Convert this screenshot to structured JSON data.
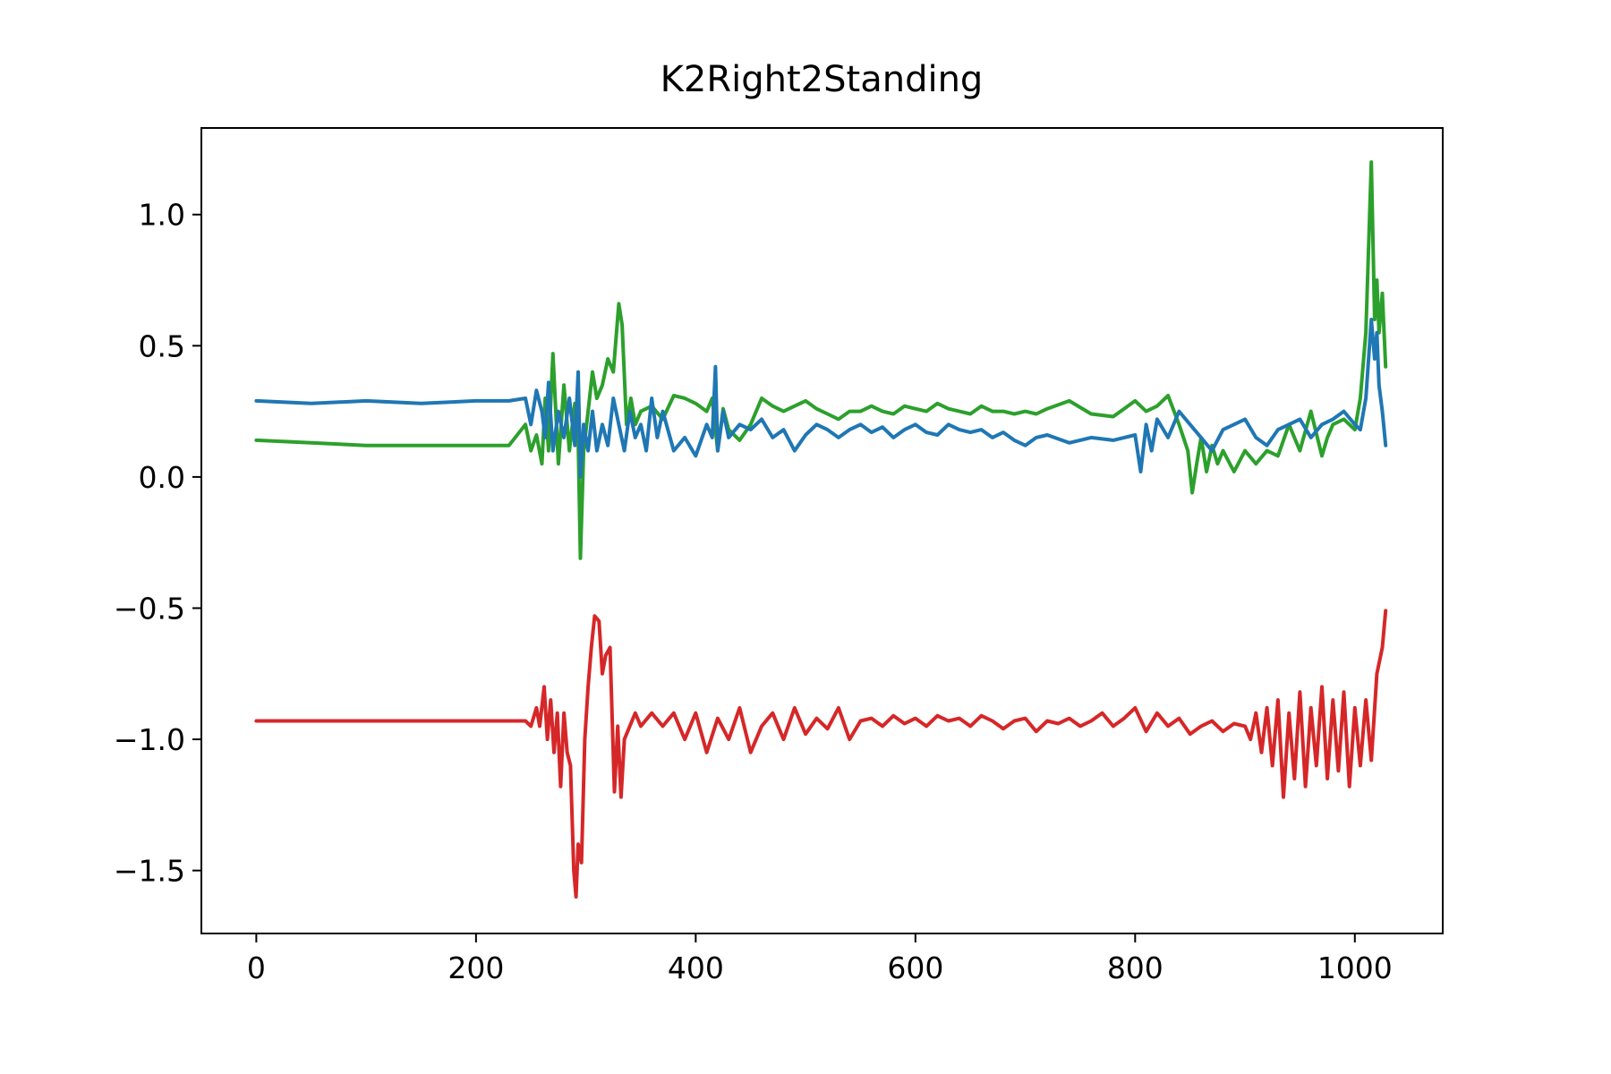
{
  "chart_data": {
    "type": "line",
    "title": "K2Right2Standing",
    "xlabel": "",
    "ylabel": "",
    "xlim": [
      -50,
      1080
    ],
    "ylim": [
      -1.74,
      1.33
    ],
    "x_ticks": [
      0,
      200,
      400,
      600,
      800,
      1000
    ],
    "x_tick_labels": [
      "0",
      "200",
      "400",
      "600",
      "800",
      "1000"
    ],
    "y_ticks": [
      1.0,
      0.5,
      0.0,
      -0.5,
      -1.0,
      -1.5
    ],
    "y_tick_labels": [
      "1.0",
      "0.5",
      "0.0",
      "−0.5",
      "−1.0",
      "−1.5"
    ],
    "grid": false,
    "legend": false,
    "series": [
      {
        "color": "#2ca02c",
        "x": [
          0,
          50,
          100,
          150,
          200,
          230,
          245,
          250,
          255,
          260,
          263,
          266,
          270,
          275,
          280,
          285,
          290,
          293,
          295,
          298,
          302,
          306,
          310,
          315,
          320,
          325,
          330,
          333,
          337,
          341,
          345,
          350,
          360,
          370,
          380,
          390,
          400,
          410,
          415,
          420,
          425,
          430,
          440,
          450,
          460,
          470,
          480,
          490,
          500,
          510,
          520,
          530,
          540,
          550,
          560,
          570,
          580,
          590,
          600,
          610,
          620,
          630,
          640,
          650,
          660,
          670,
          680,
          690,
          700,
          710,
          720,
          740,
          760,
          780,
          800,
          810,
          820,
          830,
          840,
          848,
          852,
          856,
          860,
          865,
          870,
          875,
          880,
          890,
          900,
          910,
          920,
          930,
          940,
          950,
          960,
          970,
          975,
          980,
          990,
          1000,
          1005,
          1010,
          1015,
          1018,
          1020,
          1022,
          1025,
          1028
        ],
        "y": [
          0.14,
          0.13,
          0.12,
          0.12,
          0.12,
          0.12,
          0.2,
          0.1,
          0.16,
          0.05,
          0.3,
          0.1,
          0.47,
          0.05,
          0.35,
          0.1,
          0.28,
          0.15,
          -0.31,
          0.1,
          0.25,
          0.4,
          0.3,
          0.35,
          0.45,
          0.4,
          0.66,
          0.58,
          0.2,
          0.3,
          0.2,
          0.25,
          0.27,
          0.22,
          0.31,
          0.3,
          0.28,
          0.25,
          0.3,
          0.1,
          0.26,
          0.18,
          0.14,
          0.2,
          0.3,
          0.27,
          0.25,
          0.27,
          0.29,
          0.26,
          0.24,
          0.22,
          0.25,
          0.25,
          0.27,
          0.25,
          0.24,
          0.27,
          0.26,
          0.25,
          0.28,
          0.26,
          0.25,
          0.24,
          0.27,
          0.25,
          0.25,
          0.24,
          0.25,
          0.24,
          0.26,
          0.29,
          0.24,
          0.23,
          0.29,
          0.25,
          0.27,
          0.31,
          0.2,
          0.1,
          -0.06,
          0.05,
          0.15,
          0.02,
          0.12,
          0.05,
          0.1,
          0.02,
          0.1,
          0.05,
          0.1,
          0.08,
          0.2,
          0.1,
          0.25,
          0.08,
          0.15,
          0.2,
          0.22,
          0.18,
          0.3,
          0.55,
          1.2,
          0.6,
          0.75,
          0.55,
          0.7,
          0.42
        ]
      },
      {
        "color": "#1f77b4",
        "x": [
          0,
          50,
          100,
          150,
          200,
          230,
          245,
          250,
          255,
          260,
          263,
          266,
          270,
          275,
          280,
          285,
          290,
          293,
          295,
          298,
          302,
          306,
          310,
          315,
          320,
          325,
          330,
          335,
          340,
          345,
          350,
          355,
          360,
          365,
          370,
          380,
          390,
          400,
          410,
          415,
          418,
          420,
          425,
          430,
          440,
          450,
          460,
          470,
          480,
          490,
          500,
          510,
          520,
          530,
          540,
          550,
          560,
          570,
          580,
          590,
          600,
          610,
          620,
          630,
          640,
          650,
          660,
          670,
          680,
          690,
          700,
          710,
          720,
          740,
          760,
          780,
          800,
          805,
          810,
          815,
          820,
          830,
          840,
          850,
          860,
          870,
          880,
          890,
          900,
          910,
          920,
          930,
          940,
          950,
          960,
          970,
          980,
          990,
          1000,
          1005,
          1010,
          1015,
          1018,
          1020,
          1022,
          1025,
          1028
        ],
        "y": [
          0.29,
          0.28,
          0.29,
          0.28,
          0.29,
          0.29,
          0.3,
          0.2,
          0.33,
          0.25,
          0.15,
          0.36,
          0.1,
          0.25,
          0.15,
          0.3,
          0.12,
          0.4,
          0.0,
          0.2,
          0.1,
          0.25,
          0.1,
          0.2,
          0.12,
          0.3,
          0.2,
          0.1,
          0.25,
          0.15,
          0.2,
          0.1,
          0.3,
          0.15,
          0.25,
          0.1,
          0.15,
          0.08,
          0.2,
          0.15,
          0.42,
          0.1,
          0.25,
          0.15,
          0.2,
          0.18,
          0.22,
          0.15,
          0.18,
          0.1,
          0.16,
          0.2,
          0.18,
          0.15,
          0.18,
          0.2,
          0.17,
          0.19,
          0.15,
          0.18,
          0.2,
          0.17,
          0.16,
          0.2,
          0.18,
          0.17,
          0.18,
          0.15,
          0.17,
          0.14,
          0.12,
          0.15,
          0.16,
          0.13,
          0.15,
          0.14,
          0.16,
          0.02,
          0.2,
          0.1,
          0.22,
          0.15,
          0.25,
          0.2,
          0.15,
          0.1,
          0.18,
          0.2,
          0.22,
          0.15,
          0.12,
          0.18,
          0.2,
          0.22,
          0.15,
          0.2,
          0.22,
          0.25,
          0.2,
          0.18,
          0.3,
          0.6,
          0.45,
          0.55,
          0.35,
          0.25,
          0.12
        ]
      },
      {
        "color": "#d62728",
        "x": [
          0,
          50,
          100,
          150,
          200,
          230,
          245,
          250,
          255,
          258,
          262,
          265,
          268,
          271,
          274,
          277,
          280,
          283,
          286,
          289,
          291,
          293,
          296,
          299,
          302,
          305,
          308,
          312,
          315,
          318,
          322,
          326,
          329,
          332,
          335,
          340,
          345,
          350,
          360,
          370,
          380,
          390,
          400,
          410,
          420,
          430,
          440,
          450,
          460,
          470,
          480,
          490,
          500,
          510,
          520,
          530,
          540,
          550,
          560,
          570,
          580,
          590,
          600,
          610,
          620,
          630,
          640,
          650,
          660,
          670,
          680,
          690,
          700,
          710,
          720,
          730,
          740,
          750,
          760,
          770,
          780,
          790,
          800,
          810,
          820,
          830,
          840,
          850,
          860,
          870,
          880,
          890,
          900,
          905,
          910,
          915,
          920,
          925,
          930,
          935,
          940,
          945,
          950,
          955,
          960,
          965,
          970,
          975,
          980,
          985,
          990,
          995,
          1000,
          1005,
          1010,
          1015,
          1020,
          1025,
          1028
        ],
        "y": [
          -0.93,
          -0.93,
          -0.93,
          -0.93,
          -0.93,
          -0.93,
          -0.93,
          -0.95,
          -0.88,
          -0.95,
          -0.8,
          -1.0,
          -0.85,
          -1.05,
          -0.9,
          -1.18,
          -0.9,
          -1.05,
          -1.1,
          -1.5,
          -1.6,
          -1.4,
          -1.47,
          -1.0,
          -0.8,
          -0.65,
          -0.53,
          -0.55,
          -0.75,
          -0.68,
          -0.65,
          -1.2,
          -0.95,
          -1.22,
          -1.0,
          -0.95,
          -0.9,
          -0.95,
          -0.9,
          -0.95,
          -0.9,
          -1.0,
          -0.9,
          -1.05,
          -0.92,
          -1.0,
          -0.88,
          -1.05,
          -0.95,
          -0.9,
          -1.0,
          -0.88,
          -0.98,
          -0.92,
          -0.96,
          -0.88,
          -1.0,
          -0.93,
          -0.92,
          -0.95,
          -0.91,
          -0.94,
          -0.92,
          -0.95,
          -0.91,
          -0.93,
          -0.92,
          -0.95,
          -0.91,
          -0.93,
          -0.96,
          -0.93,
          -0.92,
          -0.97,
          -0.93,
          -0.94,
          -0.92,
          -0.95,
          -0.93,
          -0.9,
          -0.95,
          -0.92,
          -0.88,
          -0.97,
          -0.9,
          -0.95,
          -0.92,
          -0.98,
          -0.95,
          -0.93,
          -0.97,
          -0.94,
          -0.95,
          -1.0,
          -0.9,
          -1.05,
          -0.88,
          -1.1,
          -0.85,
          -1.22,
          -0.9,
          -1.15,
          -0.82,
          -1.18,
          -0.88,
          -1.1,
          -0.8,
          -1.15,
          -0.85,
          -1.12,
          -0.82,
          -1.18,
          -0.88,
          -1.1,
          -0.85,
          -1.08,
          -0.75,
          -0.65,
          -0.51
        ]
      }
    ]
  }
}
